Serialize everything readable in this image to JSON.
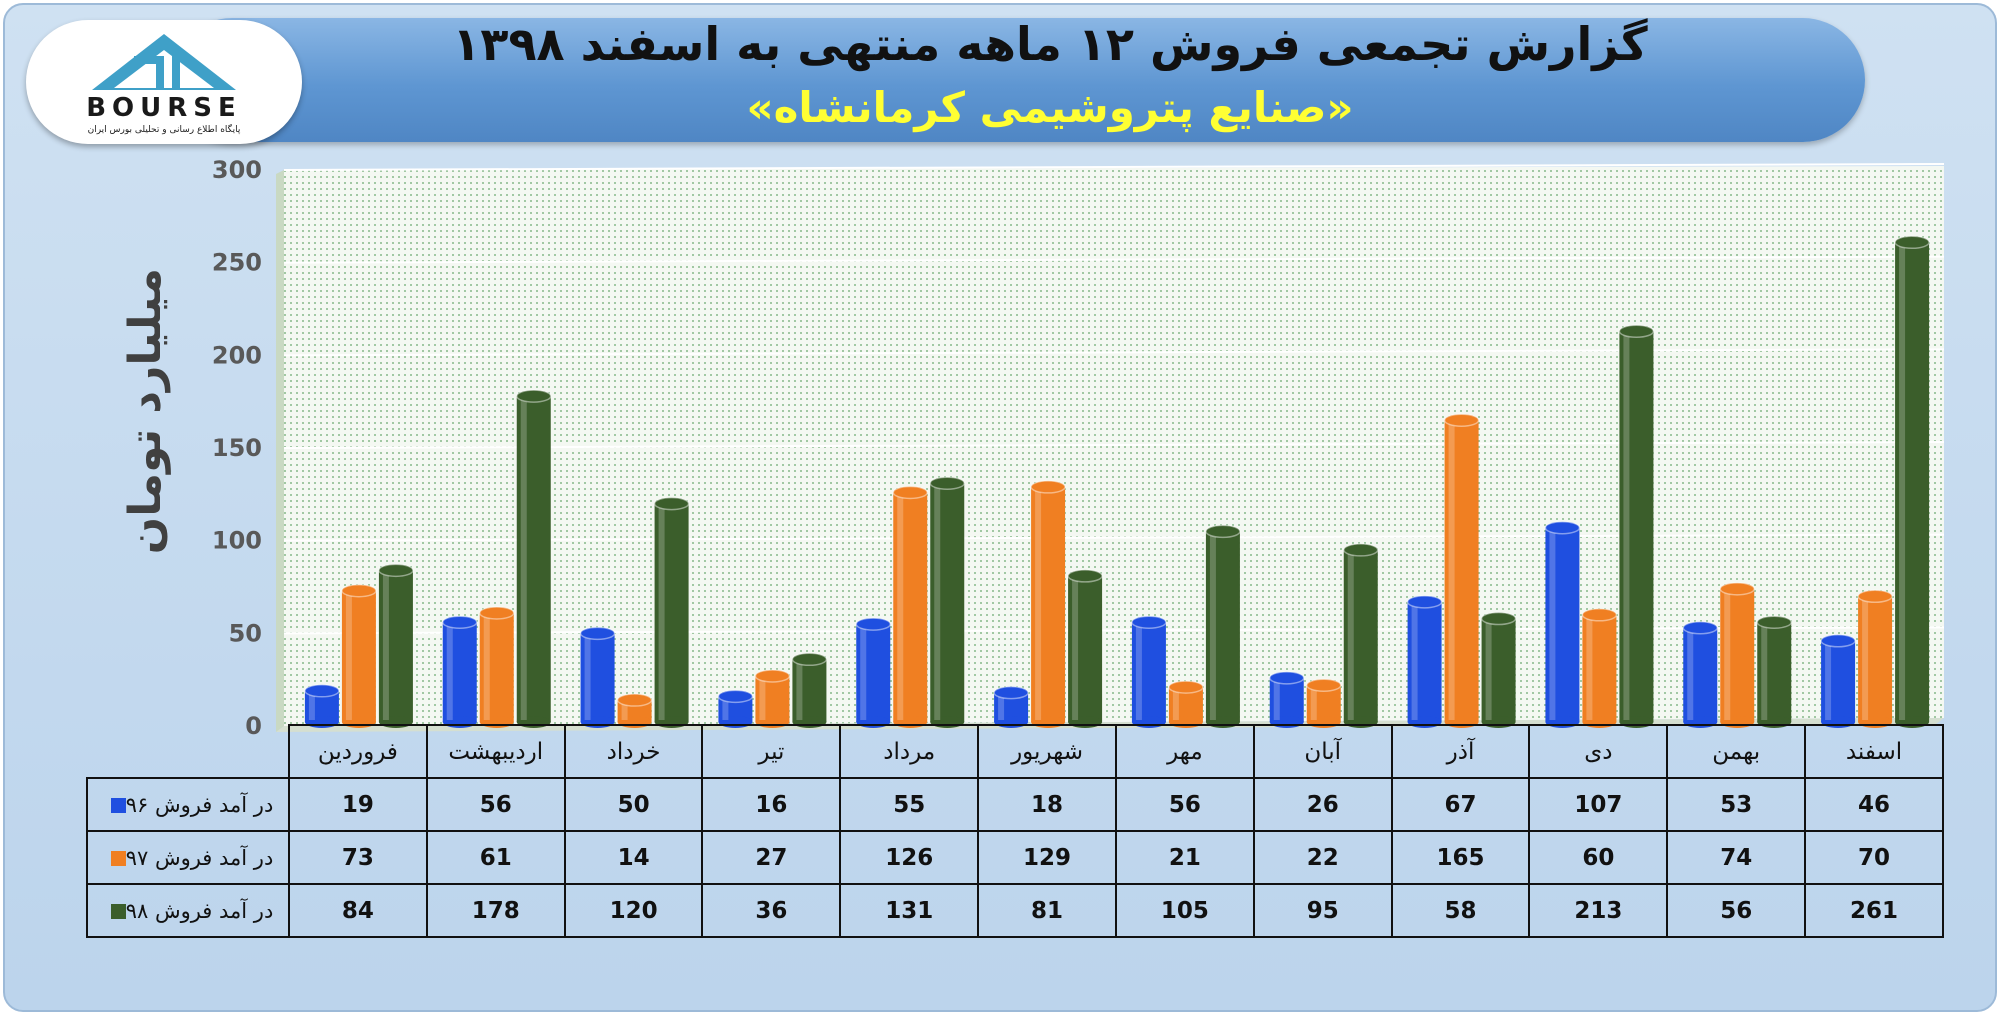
{
  "header": {
    "title": "گزارش تجمعی فروش ۱۲ ماهه منتهی به اسفند ۱۳۹۸",
    "subtitle": "«صنایع پتروشیمی کرمانشاه»"
  },
  "logo": {
    "text": "BOURSE",
    "tagline": "پایگاه اطلاع رسانی و تحلیلی بورس ایران"
  },
  "colors": {
    "series_96": "#1f4fe0",
    "series_97": "#f07f22",
    "series_98": "#3b5e2b"
  },
  "chart_data": {
    "type": "bar",
    "ylabel": "میلیارد تومان",
    "ylim": [
      0,
      300
    ],
    "yticks": [
      "0",
      "50",
      "100",
      "150",
      "200",
      "250",
      "300"
    ],
    "grid": true,
    "categories": [
      "فروردین",
      "اردیبهشت",
      "خرداد",
      "تیر",
      "مرداد",
      "شهریور",
      "مهر",
      "آبان",
      "آذر",
      "دی",
      "بهمن",
      "اسفند"
    ],
    "series": [
      {
        "name": "در آمد فروش ۹۶",
        "values": [
          19,
          56,
          50,
          16,
          55,
          18,
          56,
          26,
          67,
          107,
          53,
          46
        ]
      },
      {
        "name": "در آمد فروش ۹۷",
        "values": [
          73,
          61,
          14,
          27,
          126,
          129,
          21,
          22,
          165,
          60,
          74,
          70
        ]
      },
      {
        "name": "در آمد فروش ۹۸",
        "values": [
          84,
          178,
          120,
          36,
          131,
          81,
          105,
          95,
          58,
          213,
          56,
          261
        ]
      }
    ]
  }
}
